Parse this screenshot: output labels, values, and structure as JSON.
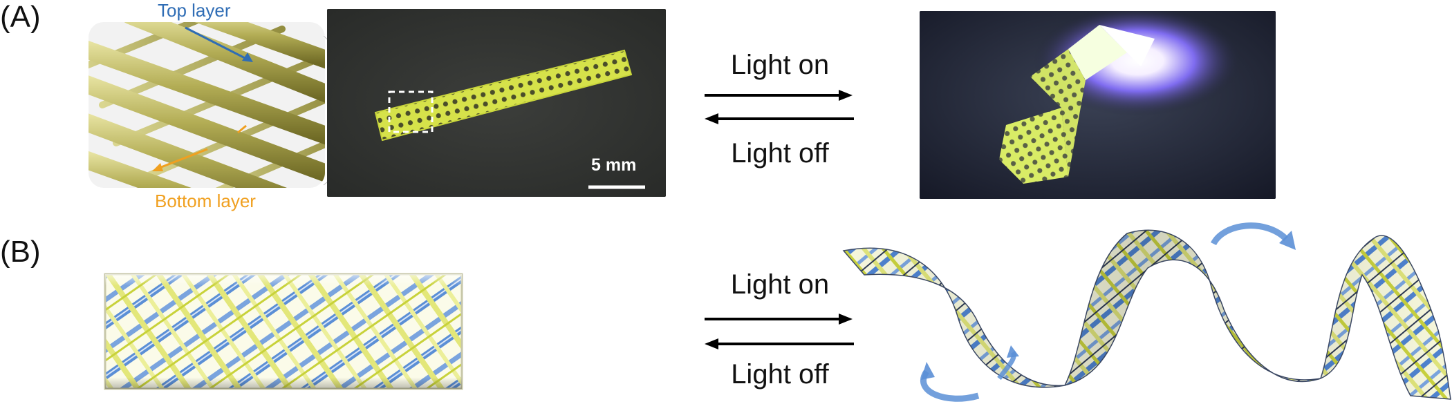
{
  "panel_a": {
    "label": "(A)",
    "top_layer_label": "Top layer",
    "bottom_layer_label": "Bottom layer",
    "scale_bar_label": "5 mm",
    "arrow_top_label": "Light on",
    "arrow_bottom_label": "Light off"
  },
  "panel_b": {
    "label": "(B)",
    "arrow_top_label": "Light on",
    "arrow_bottom_label": "Light off"
  },
  "colors": {
    "top_layer_text": "#2f6db5",
    "bottom_layer_text": "#f0a020",
    "fiber_olive": "#a8a24a",
    "mesh_yellow": "#e8ee6a",
    "mesh_blue": "#5b8fd6",
    "photo_bg": "#2e302d",
    "uv_glow": "#8d7dff"
  }
}
